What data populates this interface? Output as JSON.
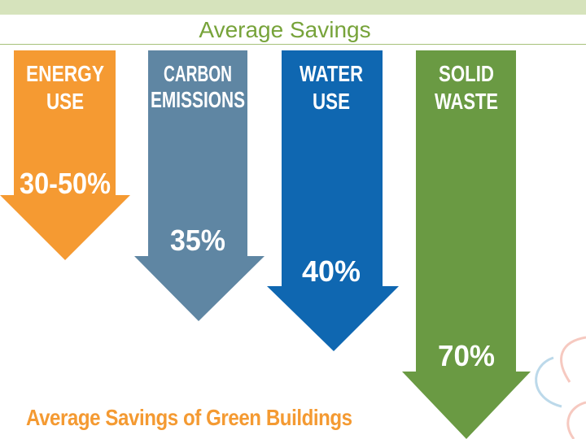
{
  "header": {
    "title": "Average Savings"
  },
  "categories": [
    {
      "line1": "ENERGY",
      "line2": "USE",
      "value": "30-50%",
      "color": "#f59a32"
    },
    {
      "line1": "CARBON",
      "line2": "EMISSIONS",
      "value": "35%",
      "color": "#5f86a3"
    },
    {
      "line1": "WATER",
      "line2": "USE",
      "value": "40%",
      "color": "#0f67b1"
    },
    {
      "line1": "SOLID",
      "line2": "WASTE",
      "value": "70%",
      "color": "#6a9a43"
    }
  ],
  "footer": {
    "caption": "Average Savings of Green Buildings"
  }
}
